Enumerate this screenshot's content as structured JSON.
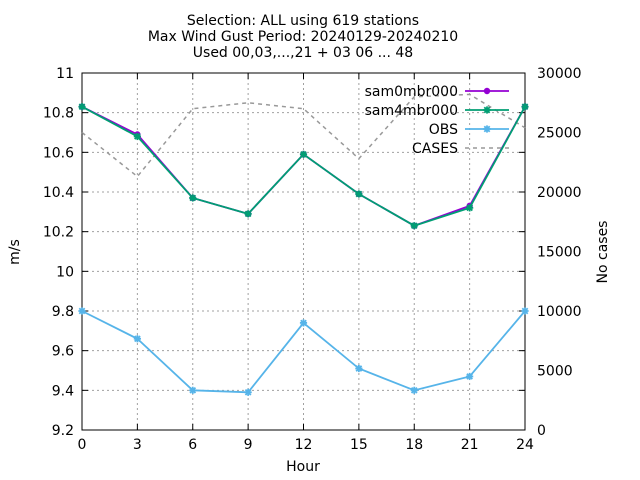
{
  "chart_data": {
    "type": "line",
    "title_lines": [
      "Selection: ALL using   619 stations",
      "Max Wind Gust   Period: 20240129-20240210",
      "Used 00,03,...,21 + 03 06 ... 48"
    ],
    "xlabel": "Hour",
    "ylabel": "m/s",
    "y2label": "No cases",
    "xlim": [
      0,
      24
    ],
    "ylim": [
      9.2,
      11
    ],
    "y2lim": [
      0,
      30000
    ],
    "x_ticks": [
      0,
      3,
      6,
      9,
      12,
      15,
      18,
      21,
      24
    ],
    "y_ticks": [
      "9.2",
      "9.4",
      "9.6",
      "9.8",
      "10",
      "10.2",
      "10.4",
      "10.6",
      "10.8",
      "11"
    ],
    "y2_ticks": [
      "0",
      "5000",
      "10000",
      "15000",
      "20000",
      "25000",
      "30000"
    ],
    "grid": true,
    "legend_position": "top-right",
    "x": [
      0,
      3,
      6,
      9,
      12,
      15,
      18,
      21,
      24
    ],
    "series": [
      {
        "name": "sam0mbr000",
        "axis": "left",
        "color": "#9400d3",
        "style": "solid",
        "marker": "circle",
        "values": [
          10.83,
          10.69,
          10.37,
          10.29,
          10.59,
          10.39,
          10.23,
          10.33,
          10.83
        ]
      },
      {
        "name": "sam4mbr000",
        "axis": "left",
        "color": "#009e73",
        "style": "solid",
        "marker": "star",
        "values": [
          10.83,
          10.68,
          10.37,
          10.29,
          10.59,
          10.39,
          10.23,
          10.32,
          10.83
        ]
      },
      {
        "name": "OBS",
        "axis": "left",
        "color": "#56b4e9",
        "style": "solid",
        "marker": "star",
        "values": [
          9.8,
          9.66,
          9.4,
          9.39,
          9.74,
          9.51,
          9.4,
          9.47,
          9.8
        ]
      },
      {
        "name": "CASES",
        "axis": "right",
        "color": "#999999",
        "style": "dashed",
        "marker": "none",
        "values": [
          25000,
          21300,
          27000,
          27500,
          27000,
          22800,
          28000,
          28200,
          25400
        ]
      }
    ]
  }
}
